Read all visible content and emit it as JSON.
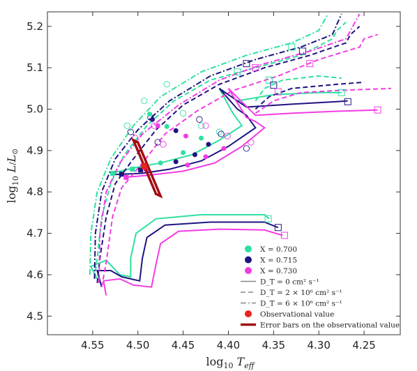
{
  "chart_data": {
    "type": "line",
    "xlabel": "log₁₀ T_eff",
    "ylabel": "log₁₀ L/L⊙",
    "xlim": [
      4.6,
      4.21
    ],
    "ylim": [
      4.455,
      5.235
    ],
    "x_reversed": true,
    "xticks": [
      "4.55",
      "4.50",
      "4.45",
      "4.40",
      "4.35",
      "4.30",
      "4.25"
    ],
    "yticks": [
      "4.5",
      "4.6",
      "4.7",
      "4.8",
      "4.9",
      "5.0",
      "5.1",
      "5.2"
    ],
    "grid": false,
    "legend_position": "bottom-right",
    "colors": {
      "X0700": "#2de0a0",
      "X0715": "#1f1380",
      "X0730": "#f23ce3",
      "obs": "#e8241e",
      "err": "#a10d12"
    },
    "legend": [
      {
        "label": "X = 0.700",
        "kind": "dot",
        "color": "#2de0a0"
      },
      {
        "label": "X = 0.715",
        "kind": "dot",
        "color": "#1f1380"
      },
      {
        "label": "X = 0.730",
        "kind": "dot",
        "color": "#f23ce3"
      },
      {
        "label": "D_T = 0 cm² s⁻¹",
        "kind": "solid",
        "color": "#888888"
      },
      {
        "label": "D_T = 2 × 10⁶ cm² s⁻¹",
        "kind": "dashed",
        "color": "#888888"
      },
      {
        "label": "D_T = 6 × 10⁶ cm² s⁻¹",
        "kind": "dashdot",
        "color": "#888888"
      },
      {
        "label": "Observational value",
        "kind": "dot",
        "color": "#e8241e"
      },
      {
        "label": "Error bars on the observational value",
        "kind": "bar",
        "color": "#a10d12"
      }
    ],
    "series": [
      {
        "x_key": "X0700",
        "dt": 0,
        "style": "solid",
        "points": [
          [
            4.545,
            4.59
          ],
          [
            4.552,
            4.62
          ],
          [
            4.535,
            4.635
          ],
          [
            4.52,
            4.6
          ],
          [
            4.508,
            4.595
          ],
          [
            4.508,
            4.64
          ],
          [
            4.502,
            4.7
          ],
          [
            4.48,
            4.735
          ],
          [
            4.43,
            4.745
          ],
          [
            4.36,
            4.745
          ],
          [
            4.355,
            4.735
          ]
        ]
      },
      {
        "x_key": "X0700",
        "dt": 0,
        "style": "solid",
        "points": [
          [
            4.53,
            4.845
          ],
          [
            4.5,
            4.86
          ],
          [
            4.475,
            4.87
          ],
          [
            4.44,
            4.89
          ],
          [
            4.41,
            4.925
          ],
          [
            4.385,
            4.96
          ],
          [
            4.395,
            4.99
          ],
          [
            4.4,
            5.01
          ],
          [
            4.41,
            5.05
          ],
          [
            4.39,
            5.02
          ],
          [
            4.35,
            5.035
          ],
          [
            4.3,
            5.04
          ],
          [
            4.275,
            5.04
          ]
        ]
      },
      {
        "x_key": "X0715",
        "dt": 0,
        "style": "solid",
        "points": [
          [
            4.54,
            4.57
          ],
          [
            4.545,
            4.61
          ],
          [
            4.53,
            4.61
          ],
          [
            4.518,
            4.595
          ],
          [
            4.498,
            4.585
          ],
          [
            4.495,
            4.64
          ],
          [
            4.49,
            4.69
          ],
          [
            4.47,
            4.72
          ],
          [
            4.42,
            4.727
          ],
          [
            4.36,
            4.727
          ],
          [
            4.345,
            4.714
          ]
        ]
      },
      {
        "x_key": "X0715",
        "dt": 0,
        "style": "solid",
        "points": [
          [
            4.525,
            4.842
          ],
          [
            4.495,
            4.845
          ],
          [
            4.465,
            4.855
          ],
          [
            4.43,
            4.875
          ],
          [
            4.4,
            4.91
          ],
          [
            4.37,
            4.955
          ],
          [
            4.38,
            4.985
          ],
          [
            4.39,
            5.0
          ],
          [
            4.41,
            5.05
          ],
          [
            4.38,
            5.005
          ],
          [
            4.33,
            5.012
          ],
          [
            4.28,
            5.018
          ],
          [
            4.268,
            5.02
          ]
        ]
      },
      {
        "x_key": "X0730",
        "dt": 0,
        "style": "solid",
        "points": [
          [
            4.535,
            4.55
          ],
          [
            4.538,
            4.585
          ],
          [
            4.52,
            4.59
          ],
          [
            4.505,
            4.575
          ],
          [
            4.485,
            4.57
          ],
          [
            4.48,
            4.625
          ],
          [
            4.475,
            4.675
          ],
          [
            4.455,
            4.705
          ],
          [
            4.41,
            4.71
          ],
          [
            4.36,
            4.708
          ],
          [
            4.34,
            4.695
          ]
        ]
      },
      {
        "x_key": "X0730",
        "dt": 0,
        "style": "solid",
        "points": [
          [
            4.515,
            4.835
          ],
          [
            4.49,
            4.84
          ],
          [
            4.45,
            4.85
          ],
          [
            4.415,
            4.87
          ],
          [
            4.385,
            4.91
          ],
          [
            4.36,
            4.955
          ],
          [
            4.37,
            4.97
          ],
          [
            4.38,
            4.98
          ],
          [
            4.4,
            5.05
          ],
          [
            4.37,
            4.985
          ],
          [
            4.33,
            4.99
          ],
          [
            4.28,
            4.995
          ],
          [
            4.235,
            4.998
          ]
        ]
      },
      {
        "x_key": "X0700",
        "dt": 2,
        "style": "dashed",
        "points": [
          [
            4.548,
            4.59
          ],
          [
            4.545,
            4.64
          ],
          [
            4.54,
            4.74
          ],
          [
            4.53,
            4.82
          ],
          [
            4.515,
            4.89
          ],
          [
            4.49,
            4.96
          ],
          [
            4.46,
            5.02
          ],
          [
            4.42,
            5.07
          ],
          [
            4.37,
            5.1
          ],
          [
            4.32,
            5.13
          ],
          [
            4.285,
            5.17
          ],
          [
            4.28,
            5.19
          ],
          [
            4.27,
            5.21
          ]
        ]
      },
      {
        "x_key": "X0700",
        "dt": 2,
        "style": "dashed",
        "points": [
          [
            4.37,
            5.02
          ],
          [
            4.36,
            5.05
          ],
          [
            4.34,
            5.07
          ],
          [
            4.3,
            5.08
          ],
          [
            4.275,
            5.075
          ]
        ]
      },
      {
        "x_key": "X0715",
        "dt": 2,
        "style": "dashed",
        "points": [
          [
            4.545,
            4.58
          ],
          [
            4.542,
            4.64
          ],
          [
            4.535,
            4.74
          ],
          [
            4.525,
            4.82
          ],
          [
            4.505,
            4.88
          ],
          [
            4.48,
            4.95
          ],
          [
            4.45,
            5.01
          ],
          [
            4.41,
            5.06
          ],
          [
            4.36,
            5.1
          ],
          [
            4.31,
            5.13
          ],
          [
            4.27,
            5.16
          ],
          [
            4.265,
            5.18
          ],
          [
            4.255,
            5.2
          ]
        ]
      },
      {
        "x_key": "X0715",
        "dt": 2,
        "style": "dashed",
        "points": [
          [
            4.37,
            5.0
          ],
          [
            4.355,
            5.03
          ],
          [
            4.33,
            5.05
          ],
          [
            4.28,
            5.06
          ],
          [
            4.25,
            5.065
          ]
        ]
      },
      {
        "x_key": "X0730",
        "dt": 2,
        "style": "dashed",
        "points": [
          [
            4.54,
            4.57
          ],
          [
            4.535,
            4.63
          ],
          [
            4.528,
            4.74
          ],
          [
            4.518,
            4.81
          ],
          [
            4.495,
            4.87
          ],
          [
            4.47,
            4.94
          ],
          [
            4.435,
            4.995
          ],
          [
            4.395,
            5.045
          ],
          [
            4.345,
            5.08
          ],
          [
            4.3,
            5.12
          ],
          [
            4.255,
            5.15
          ],
          [
            4.25,
            5.17
          ],
          [
            4.235,
            5.18
          ]
        ]
      },
      {
        "x_key": "X0730",
        "dt": 2,
        "style": "dashed",
        "points": [
          [
            4.37,
            4.99
          ],
          [
            4.35,
            5.02
          ],
          [
            4.32,
            5.04
          ],
          [
            4.28,
            5.045
          ],
          [
            4.22,
            5.05
          ]
        ]
      },
      {
        "x_key": "X0700",
        "dt": 6,
        "style": "dashdot",
        "points": [
          [
            4.553,
            4.6
          ],
          [
            4.552,
            4.7
          ],
          [
            4.545,
            4.8
          ],
          [
            4.53,
            4.88
          ],
          [
            4.505,
            4.96
          ],
          [
            4.475,
            5.03
          ],
          [
            4.43,
            5.09
          ],
          [
            4.38,
            5.13
          ],
          [
            4.33,
            5.16
          ],
          [
            4.3,
            5.19
          ],
          [
            4.29,
            5.23
          ]
        ]
      },
      {
        "x_key": "X0715",
        "dt": 6,
        "style": "dashdot",
        "points": [
          [
            4.548,
            4.59
          ],
          [
            4.547,
            4.7
          ],
          [
            4.54,
            4.8
          ],
          [
            4.525,
            4.88
          ],
          [
            4.5,
            4.95
          ],
          [
            4.465,
            5.02
          ],
          [
            4.42,
            5.08
          ],
          [
            4.37,
            5.12
          ],
          [
            4.32,
            5.15
          ],
          [
            4.285,
            5.18
          ],
          [
            4.275,
            5.23
          ]
        ]
      },
      {
        "x_key": "X0730",
        "dt": 6,
        "style": "dashdot",
        "points": [
          [
            4.543,
            4.58
          ],
          [
            4.542,
            4.7
          ],
          [
            4.535,
            4.8
          ],
          [
            4.52,
            4.87
          ],
          [
            4.495,
            4.94
          ],
          [
            4.455,
            5.01
          ],
          [
            4.41,
            5.07
          ],
          [
            4.36,
            5.11
          ],
          [
            4.31,
            5.14
          ],
          [
            4.27,
            5.17
          ],
          [
            4.255,
            5.23
          ]
        ]
      }
    ],
    "filled_dots": [
      {
        "x_key": "X0700",
        "points": [
          [
            4.528,
            4.845
          ],
          [
            4.506,
            4.855
          ],
          [
            4.487,
            4.988
          ],
          [
            4.468,
            4.958
          ],
          [
            4.475,
            4.87
          ],
          [
            4.45,
            4.895
          ],
          [
            4.43,
            4.93
          ]
        ]
      },
      {
        "x_key": "X0715",
        "points": [
          [
            4.518,
            4.843
          ],
          [
            4.497,
            4.853
          ],
          [
            4.484,
            4.975
          ],
          [
            4.458,
            4.948
          ],
          [
            4.458,
            4.873
          ],
          [
            4.437,
            4.89
          ],
          [
            4.422,
            4.915
          ]
        ]
      },
      {
        "x_key": "X0730",
        "points": [
          [
            4.513,
            4.835
          ],
          [
            4.491,
            4.855
          ],
          [
            4.478,
            4.96
          ],
          [
            4.447,
            4.935
          ],
          [
            4.445,
            4.865
          ],
          [
            4.425,
            4.885
          ],
          [
            4.405,
            4.905
          ]
        ]
      }
    ],
    "open_circles": [
      {
        "x_key": "X0700",
        "points": [
          [
            4.512,
            4.96
          ],
          [
            4.493,
            5.02
          ],
          [
            4.468,
            5.06
          ],
          [
            4.45,
            4.99
          ],
          [
            4.43,
            4.96
          ],
          [
            4.41,
            4.945
          ]
        ]
      },
      {
        "x_key": "X0715",
        "points": [
          [
            4.508,
            4.945
          ],
          [
            4.486,
            4.98
          ],
          [
            4.478,
            4.92
          ],
          [
            4.432,
            4.975
          ],
          [
            4.408,
            4.94
          ],
          [
            4.38,
            4.905
          ]
        ]
      },
      {
        "x_key": "X0730",
        "points": [
          [
            4.503,
            4.93
          ],
          [
            4.482,
            4.96
          ],
          [
            4.472,
            4.915
          ],
          [
            4.425,
            4.96
          ],
          [
            4.401,
            4.935
          ],
          [
            4.375,
            4.92
          ]
        ]
      }
    ],
    "open_squares": [
      {
        "x_key": "X0700",
        "points": [
          [
            4.356,
            4.735
          ],
          [
            4.275,
            5.04
          ],
          [
            4.355,
            5.07
          ],
          [
            4.39,
            5.09
          ],
          [
            4.33,
            5.15
          ]
        ]
      },
      {
        "x_key": "X0715",
        "points": [
          [
            4.345,
            4.714
          ],
          [
            4.268,
            5.018
          ],
          [
            4.35,
            5.058
          ],
          [
            4.38,
            5.11
          ],
          [
            4.318,
            5.14
          ]
        ]
      },
      {
        "x_key": "X0730",
        "points": [
          [
            4.338,
            4.695
          ],
          [
            4.235,
            4.998
          ],
          [
            4.345,
            5.042
          ],
          [
            4.37,
            5.1
          ],
          [
            4.31,
            5.11
          ]
        ]
      }
    ],
    "observational": {
      "x": 4.493,
      "y": 4.862
    },
    "error_bars": {
      "polygon": [
        [
          4.505,
          4.925
        ],
        [
          4.5,
          4.92
        ],
        [
          4.475,
          4.79
        ],
        [
          4.48,
          4.795
        ]
      ]
    }
  }
}
